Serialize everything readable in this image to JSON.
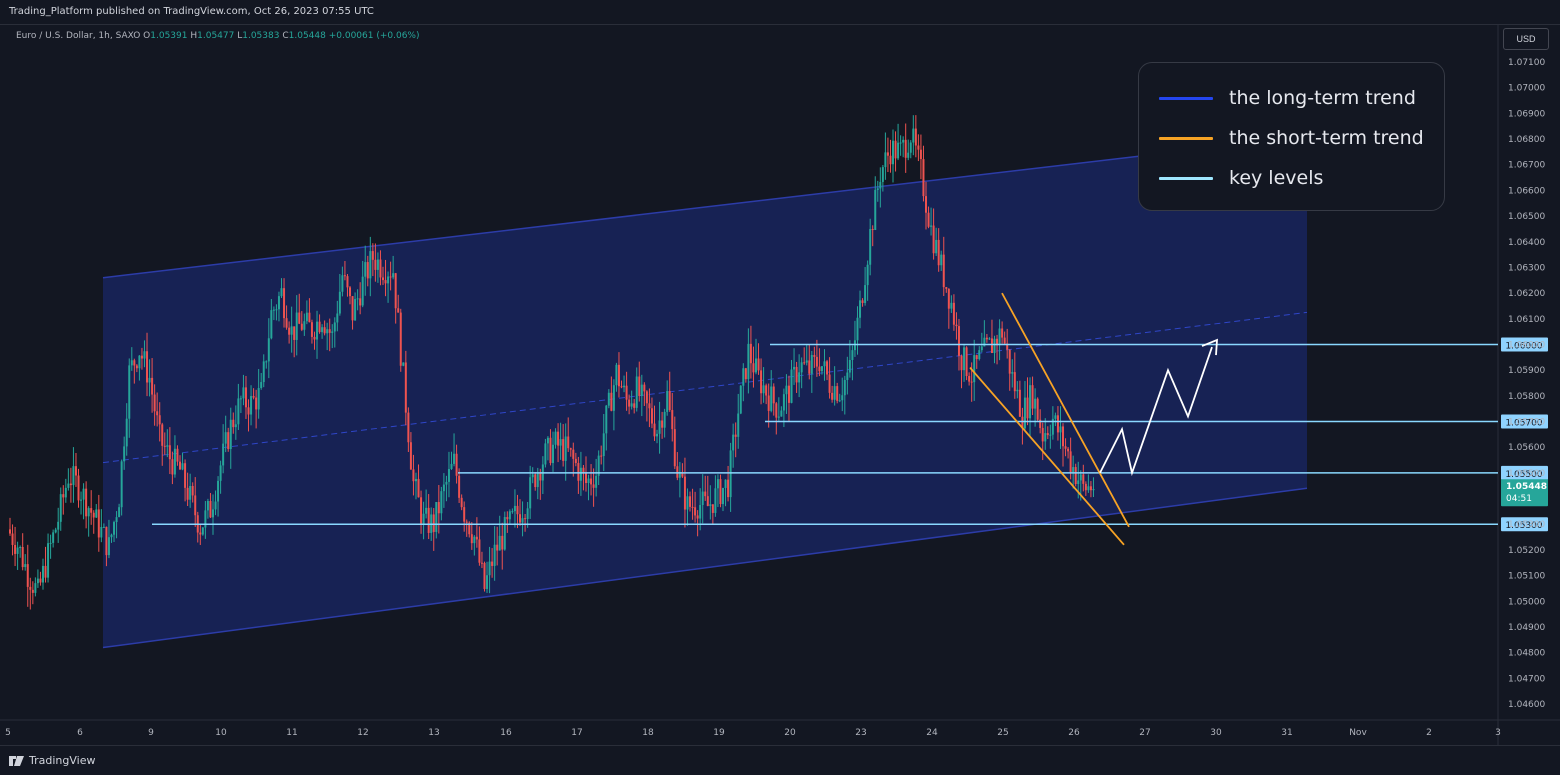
{
  "header": {
    "publisher_line": "Trading_Platform published on TradingView.com, Oct 26, 2023 07:55 UTC"
  },
  "symbol": {
    "name": "Euro / U.S. Dollar, 1h, SAXO",
    "o_label": "O",
    "o_value": "1.05391",
    "h_label": "H",
    "h_value": "1.05477",
    "l_label": "L",
    "l_value": "1.05383",
    "c_label": "C",
    "c_value": "1.05448",
    "change": "+0.00061 (+0.06%)"
  },
  "currency_button": "USD",
  "footer": {
    "brand": "TradingView"
  },
  "legend": {
    "items": [
      {
        "label": "the long-term trend",
        "color": "#2446f0"
      },
      {
        "label": "the short-term trend",
        "color": "#f7a325"
      },
      {
        "label": "key levels",
        "color": "#9fe7ff"
      }
    ]
  },
  "colors": {
    "background": "#131722",
    "up": "#26a69a",
    "down": "#ef5350",
    "channel_fill": "#1a2766",
    "channel_line": "#2c3ca8",
    "key_level": "#8ad8ff",
    "short_trend": "#f7a325",
    "projection": "#ffffff",
    "price_label_bg": "#8fd3ff",
    "last_price_bg": "#26a69a"
  },
  "chart_data": {
    "type": "candlestick",
    "symbol": "EURUSD",
    "timeframe": "1h",
    "y_axis_ticks": [
      "1.07100",
      "1.07000",
      "1.06900",
      "1.06800",
      "1.06700",
      "1.06600",
      "1.06500",
      "1.06400",
      "1.06300",
      "1.06200",
      "1.06100",
      "1.06000",
      "1.05900",
      "1.05800",
      "1.05700",
      "1.05600",
      "1.05500",
      "1.05400",
      "1.05300",
      "1.05200",
      "1.05100",
      "1.05000",
      "1.04900",
      "1.04800",
      "1.04700",
      "1.04600"
    ],
    "ylim": [
      1.0455,
      1.0715
    ],
    "x_axis_labels": [
      "5",
      "6",
      "9",
      "10",
      "11",
      "12",
      "13",
      "16",
      "17",
      "18",
      "19",
      "20",
      "23",
      "24",
      "25",
      "26",
      "27",
      "30",
      "31",
      "Nov",
      "2",
      "3"
    ],
    "key_levels": [
      "1.06000",
      "1.05700",
      "1.05500",
      "1.05300"
    ],
    "last_price": "1.05448",
    "countdown": "04:51",
    "long_term_channel": {
      "lower_start": 1.0482,
      "lower_end": 1.0544,
      "upper_start": 1.0626,
      "upper_end": 1.0681
    },
    "close_path": [
      1.0528,
      1.0522,
      1.0511,
      1.0503,
      1.0518,
      1.0532,
      1.0549,
      1.0545,
      1.0537,
      1.0529,
      1.0521,
      1.0541,
      1.0589,
      1.0598,
      1.0587,
      1.0563,
      1.0556,
      1.0551,
      1.054,
      1.0529,
      1.0536,
      1.0553,
      1.0568,
      1.0578,
      1.0577,
      1.0581,
      1.0612,
      1.062,
      1.0605,
      1.0608,
      1.0606,
      1.0611,
      1.0603,
      1.0627,
      1.0612,
      1.0624,
      1.0634,
      1.063,
      1.0629,
      1.0587,
      1.0546,
      1.0531,
      1.053,
      1.0543,
      1.0554,
      1.0535,
      1.0525,
      1.0505,
      1.0519,
      1.0527,
      1.0533,
      1.0538,
      1.0549,
      1.0557,
      1.0561,
      1.0559,
      1.0553,
      1.0546,
      1.055,
      1.0571,
      1.0589,
      1.0578,
      1.0582,
      1.0575,
      1.0567,
      1.058,
      1.0551,
      1.0537,
      1.0538,
      1.0537,
      1.0542,
      1.0546,
      1.0574,
      1.0597,
      1.0587,
      1.058,
      1.0575,
      1.0582,
      1.0592,
      1.059,
      1.0594,
      1.0585,
      1.0582,
      1.059,
      1.0614,
      1.0643,
      1.0667,
      1.0676,
      1.0675,
      1.0682,
      1.0667,
      1.0645,
      1.063,
      1.0616,
      1.0595,
      1.0588,
      1.0596,
      1.06,
      1.0605,
      1.0587,
      1.0573,
      1.0581,
      1.0565,
      1.0571,
      1.0562,
      1.0552,
      1.0544,
      1.0545
    ]
  }
}
